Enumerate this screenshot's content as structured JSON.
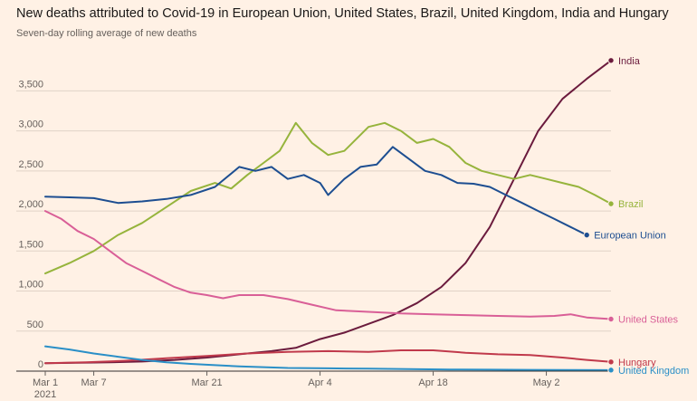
{
  "header": {
    "title": "New deaths attributed to Covid-19 in European Union, United States, Brazil, United Kingdom, India and Hungary",
    "subtitle": "Seven-day rolling average of new deaths"
  },
  "chart_data": {
    "type": "line",
    "title": "New deaths attributed to Covid-19 in European Union, United States, Brazil, United Kingdom, India and Hungary",
    "subtitle": "Seven-day rolling average of new deaths",
    "xlabel": "",
    "ylabel": "",
    "ylim": [
      0,
      3900
    ],
    "yticks": [
      0,
      500,
      1000,
      1500,
      2000,
      2500,
      3000,
      3500
    ],
    "ytick_labels": [
      "0",
      "500",
      "1,000",
      "1,500",
      "2,000",
      "2,500",
      "3,000",
      "3,500"
    ],
    "grid": true,
    "x_start": "2021-03-01",
    "x_days": 70,
    "xticks": [
      {
        "day": 0,
        "label": "Mar 1",
        "sublabel": "2021"
      },
      {
        "day": 6,
        "label": "Mar 7"
      },
      {
        "day": 20,
        "label": "Mar 21"
      },
      {
        "day": 34,
        "label": "Apr 4"
      },
      {
        "day": 48,
        "label": "Apr 18"
      },
      {
        "day": 62,
        "label": "May 2"
      }
    ],
    "series": [
      {
        "name": "India",
        "color": "#6b1b3d",
        "points": [
          [
            0,
            100
          ],
          [
            4,
            105
          ],
          [
            8,
            110
          ],
          [
            12,
            120
          ],
          [
            16,
            140
          ],
          [
            20,
            170
          ],
          [
            24,
            210
          ],
          [
            28,
            250
          ],
          [
            31,
            290
          ],
          [
            34,
            400
          ],
          [
            37,
            480
          ],
          [
            40,
            590
          ],
          [
            43,
            700
          ],
          [
            46,
            850
          ],
          [
            49,
            1050
          ],
          [
            52,
            1350
          ],
          [
            55,
            1800
          ],
          [
            58,
            2400
          ],
          [
            61,
            3000
          ],
          [
            64,
            3400
          ],
          [
            67,
            3650
          ],
          [
            70,
            3880
          ]
        ]
      },
      {
        "name": "Brazil",
        "color": "#96b43c",
        "points": [
          [
            0,
            1220
          ],
          [
            3,
            1350
          ],
          [
            6,
            1500
          ],
          [
            9,
            1700
          ],
          [
            12,
            1850
          ],
          [
            15,
            2050
          ],
          [
            18,
            2250
          ],
          [
            21,
            2350
          ],
          [
            23,
            2280
          ],
          [
            25,
            2450
          ],
          [
            27,
            2600
          ],
          [
            29,
            2750
          ],
          [
            31,
            3100
          ],
          [
            33,
            2850
          ],
          [
            35,
            2700
          ],
          [
            37,
            2750
          ],
          [
            40,
            3050
          ],
          [
            42,
            3100
          ],
          [
            44,
            3000
          ],
          [
            46,
            2850
          ],
          [
            48,
            2900
          ],
          [
            50,
            2800
          ],
          [
            52,
            2600
          ],
          [
            54,
            2500
          ],
          [
            56,
            2450
          ],
          [
            58,
            2400
          ],
          [
            60,
            2450
          ],
          [
            62,
            2400
          ],
          [
            64,
            2350
          ],
          [
            66,
            2300
          ],
          [
            68,
            2200
          ],
          [
            70,
            2090
          ]
        ]
      },
      {
        "name": "European Union",
        "color": "#1d4e91",
        "points": [
          [
            0,
            2180
          ],
          [
            3,
            2170
          ],
          [
            6,
            2160
          ],
          [
            9,
            2100
          ],
          [
            12,
            2120
          ],
          [
            15,
            2150
          ],
          [
            18,
            2200
          ],
          [
            21,
            2300
          ],
          [
            24,
            2550
          ],
          [
            26,
            2500
          ],
          [
            28,
            2550
          ],
          [
            30,
            2400
          ],
          [
            32,
            2450
          ],
          [
            34,
            2350
          ],
          [
            35,
            2200
          ],
          [
            37,
            2400
          ],
          [
            39,
            2550
          ],
          [
            41,
            2580
          ],
          [
            43,
            2800
          ],
          [
            45,
            2650
          ],
          [
            47,
            2500
          ],
          [
            49,
            2450
          ],
          [
            51,
            2350
          ],
          [
            53,
            2340
          ],
          [
            55,
            2300
          ],
          [
            57,
            2200
          ],
          [
            59,
            2100
          ],
          [
            61,
            2000
          ],
          [
            63,
            1900
          ],
          [
            65,
            1800
          ],
          [
            67,
            1700
          ]
        ]
      },
      {
        "name": "United States",
        "color": "#d95f97",
        "points": [
          [
            0,
            2000
          ],
          [
            2,
            1900
          ],
          [
            4,
            1750
          ],
          [
            6,
            1650
          ],
          [
            8,
            1500
          ],
          [
            10,
            1350
          ],
          [
            12,
            1250
          ],
          [
            14,
            1150
          ],
          [
            16,
            1050
          ],
          [
            18,
            980
          ],
          [
            20,
            950
          ],
          [
            22,
            910
          ],
          [
            24,
            950
          ],
          [
            27,
            950
          ],
          [
            30,
            900
          ],
          [
            33,
            830
          ],
          [
            36,
            760
          ],
          [
            40,
            740
          ],
          [
            44,
            720
          ],
          [
            48,
            710
          ],
          [
            52,
            700
          ],
          [
            56,
            690
          ],
          [
            60,
            680
          ],
          [
            63,
            690
          ],
          [
            65,
            710
          ],
          [
            67,
            670
          ],
          [
            70,
            650
          ]
        ]
      },
      {
        "name": "Hungary",
        "color": "#c0394b",
        "points": [
          [
            0,
            100
          ],
          [
            5,
            110
          ],
          [
            10,
            130
          ],
          [
            15,
            160
          ],
          [
            20,
            190
          ],
          [
            25,
            220
          ],
          [
            30,
            240
          ],
          [
            35,
            250
          ],
          [
            40,
            240
          ],
          [
            44,
            260
          ],
          [
            48,
            260
          ],
          [
            52,
            230
          ],
          [
            56,
            210
          ],
          [
            60,
            200
          ],
          [
            64,
            170
          ],
          [
            67,
            140
          ],
          [
            70,
            115
          ]
        ]
      },
      {
        "name": "United Kingdom",
        "color": "#2a8fc7",
        "points": [
          [
            0,
            310
          ],
          [
            3,
            270
          ],
          [
            6,
            220
          ],
          [
            9,
            180
          ],
          [
            12,
            140
          ],
          [
            15,
            110
          ],
          [
            18,
            90
          ],
          [
            21,
            75
          ],
          [
            24,
            60
          ],
          [
            27,
            50
          ],
          [
            30,
            40
          ],
          [
            35,
            35
          ],
          [
            40,
            30
          ],
          [
            45,
            25
          ],
          [
            50,
            20
          ],
          [
            55,
            18
          ],
          [
            60,
            16
          ],
          [
            65,
            15
          ],
          [
            70,
            13
          ]
        ]
      }
    ]
  }
}
